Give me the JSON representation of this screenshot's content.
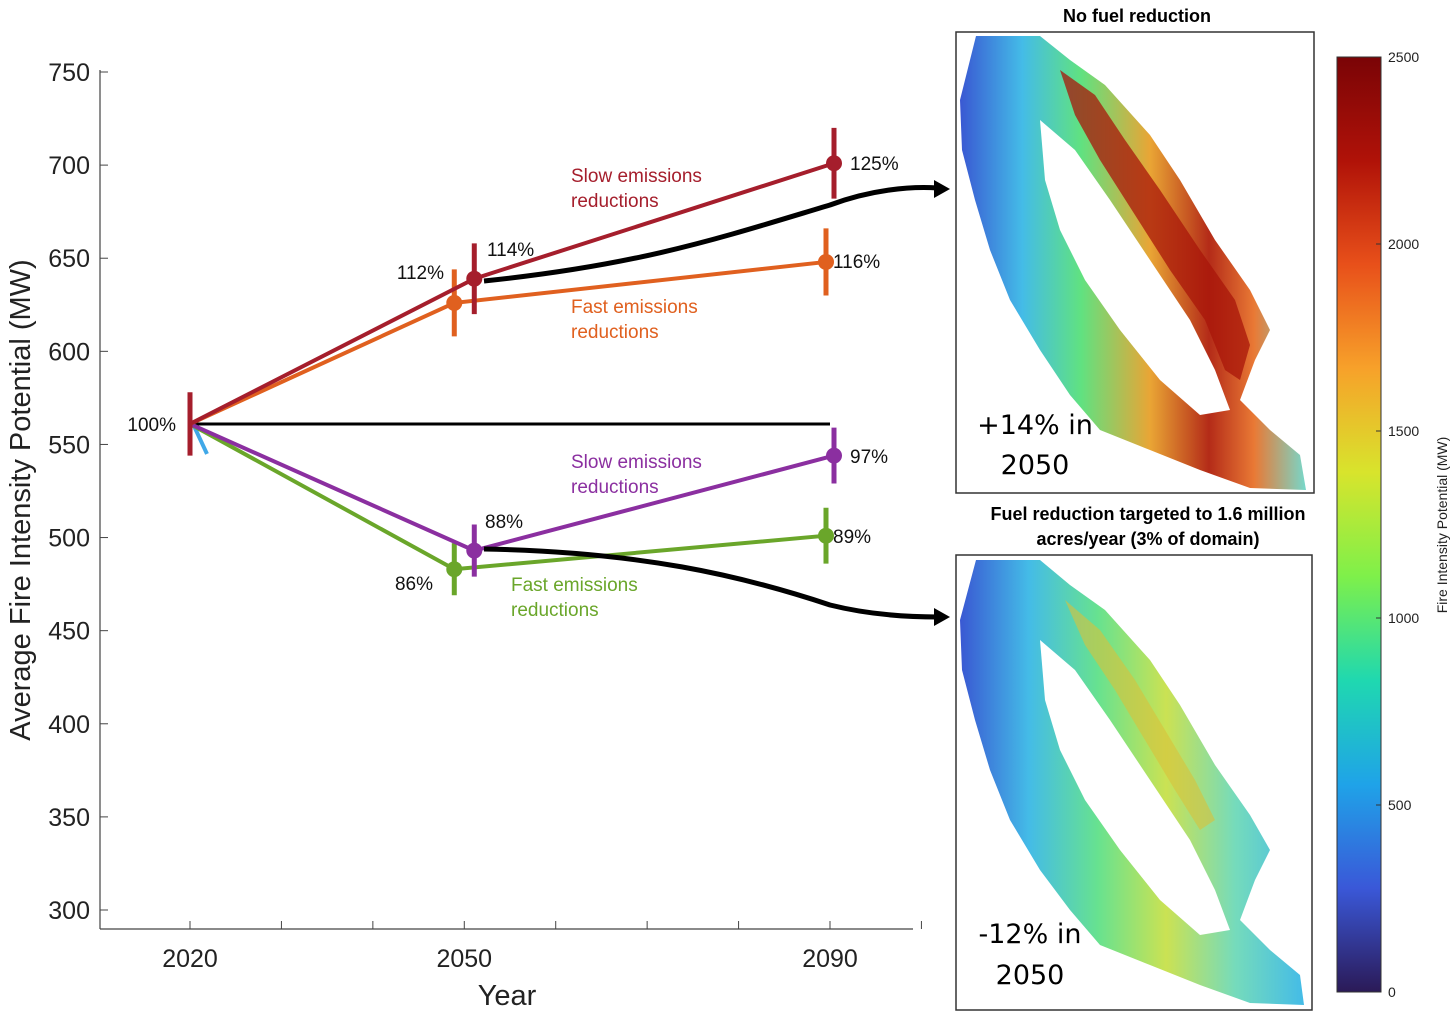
{
  "chart_data": {
    "type": "line",
    "xlabel": "Year",
    "ylabel": "Average Fire Intensity Potential (MW)",
    "ylim": [
      300,
      750
    ],
    "yticks": [
      300,
      350,
      400,
      450,
      500,
      550,
      600,
      650,
      700,
      750
    ],
    "xticks": [
      "2020",
      "2050",
      "2090"
    ],
    "baseline": {
      "year": 2020,
      "value": 561,
      "label": "100%"
    },
    "series": [
      {
        "name": "Slow emissions reductions",
        "color": "#a51e2c",
        "points": [
          {
            "x": 2020,
            "y": 561,
            "err": 17,
            "label": ""
          },
          {
            "x": 2050,
            "y": 639,
            "err": 19,
            "label": "114%"
          },
          {
            "x": 2090,
            "y": 701,
            "err": 19,
            "label": "125%"
          }
        ]
      },
      {
        "name": "Fast emissions reductions",
        "color": "#e0601f",
        "points": [
          {
            "x": 2020,
            "y": 561,
            "err": 0,
            "label": ""
          },
          {
            "x": 2050,
            "y": 626,
            "err": 18,
            "label": "112%"
          },
          {
            "x": 2090,
            "y": 648,
            "err": 18,
            "label": "116%"
          }
        ]
      },
      {
        "name": "Slow emissions reductions",
        "color": "#8b2fa0",
        "points": [
          {
            "x": 2020,
            "y": 561,
            "err": 0,
            "label": ""
          },
          {
            "x": 2050,
            "y": 493,
            "err": 14,
            "label": "88%"
          },
          {
            "x": 2090,
            "y": 544,
            "err": 15,
            "label": "97%"
          }
        ]
      },
      {
        "name": "Fast emissions reductions",
        "color": "#6aa62a",
        "points": [
          {
            "x": 2020,
            "y": 561,
            "err": 0,
            "label": ""
          },
          {
            "x": 2050,
            "y": 483,
            "err": 14,
            "label": "86%"
          },
          {
            "x": 2090,
            "y": 501,
            "err": 15,
            "label": "89%"
          }
        ]
      }
    ],
    "series_labels": [
      {
        "text": [
          "Slow emissions",
          "reductions"
        ],
        "color": "#a51e2c"
      },
      {
        "text": [
          "Fast emissions",
          "reductions"
        ],
        "color": "#e0601f"
      },
      {
        "text": [
          "Slow emissions",
          "reductions"
        ],
        "color": "#8b2fa0"
      },
      {
        "text": [
          "Fast emissions",
          "reductions"
        ],
        "color": "#6aa62a"
      }
    ]
  },
  "maps": {
    "top": {
      "title": "No fuel reduction",
      "change": "+14% in",
      "year": "2050"
    },
    "bottom": {
      "title_lines": [
        "Fuel reduction targeted to 1.6 million",
        "acres/year (3% of domain)"
      ],
      "change": "-12% in",
      "year": "2050"
    }
  },
  "colorbar": {
    "label": "Fire Intensity Potential (MW)",
    "ticks": [
      "0",
      "500",
      "1000",
      "1500",
      "2000",
      "2500"
    ],
    "colors": [
      "#2b1a57",
      "#3a58d8",
      "#1fa3e8",
      "#1fd8b0",
      "#7ef04a",
      "#d8e42c",
      "#f7a12a",
      "#e8501a",
      "#b01208",
      "#7a0406"
    ]
  }
}
